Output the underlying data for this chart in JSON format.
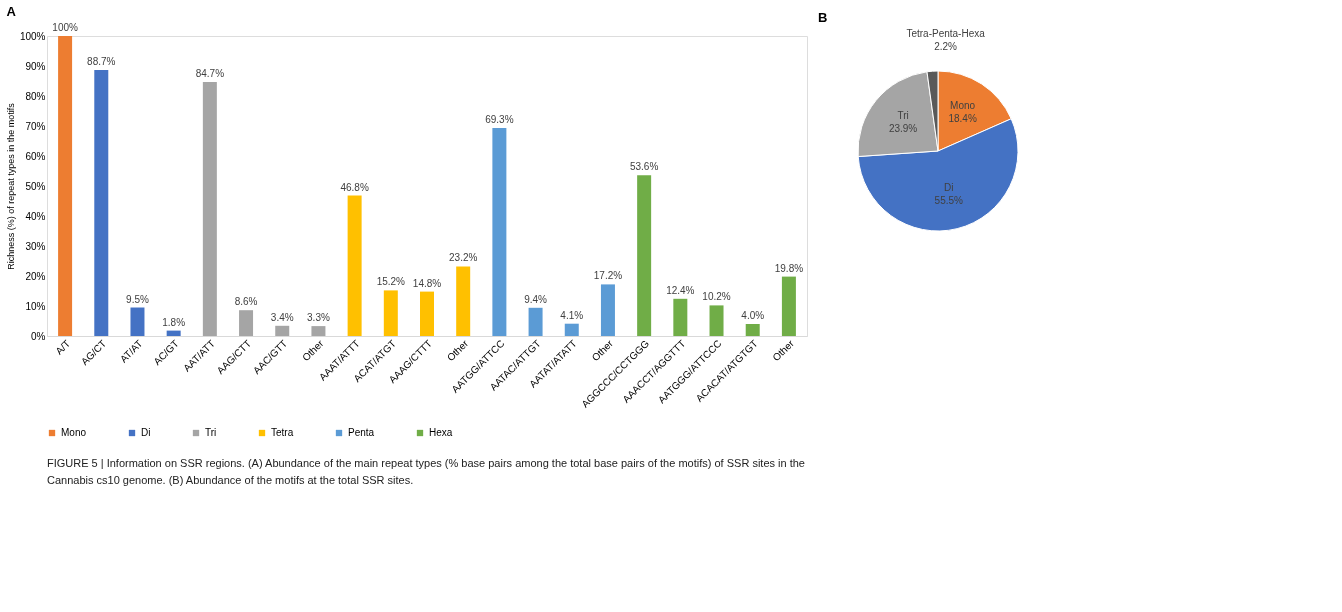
{
  "chart_data": [
    {
      "type": "bar",
      "title": "A",
      "ylabel": "Richness (%) of repeat types in the motifs",
      "categories": [
        "A/T",
        "AG/CT",
        "AT/AT",
        "AC/GT",
        "AAT/ATT",
        "AAG/CTT",
        "AAC/GTT",
        "Other",
        "AAAT/ATTT",
        "ACAT/ATGT",
        "AAAG/CTTT",
        "Other",
        "AATGG/ATTCC",
        "AATAC/ATTGT",
        "AATAT/ATATT",
        "Other",
        "AGGCCC/CCTGGG",
        "AAACCT/AGGTTT",
        "AATGGG/ATTCCC",
        "ACACAT/ATGTGT",
        "Other"
      ],
      "series": [
        {
          "name": "Mono",
          "color": "#ed7d31",
          "values": [
            100,
            null,
            null,
            null,
            null,
            null,
            null,
            null,
            null,
            null,
            null,
            null,
            null,
            null,
            null,
            null,
            null,
            null,
            null,
            null,
            null
          ],
          "value_labels": [
            "100%",
            null,
            null,
            null,
            null,
            null,
            null,
            null,
            null,
            null,
            null,
            null,
            null,
            null,
            null,
            null,
            null,
            null,
            null,
            null,
            null
          ]
        },
        {
          "name": "Di",
          "color": "#4472c4",
          "values": [
            null,
            88.7,
            9.5,
            1.8,
            null,
            null,
            null,
            null,
            null,
            null,
            null,
            null,
            null,
            null,
            null,
            null,
            null,
            null,
            null,
            null,
            null
          ],
          "value_labels": [
            null,
            "88.7%",
            "9.5%",
            "1.8%",
            null,
            null,
            null,
            null,
            null,
            null,
            null,
            null,
            null,
            null,
            null,
            null,
            null,
            null,
            null,
            null,
            null
          ]
        },
        {
          "name": "Tri",
          "color": "#a5a5a5",
          "values": [
            null,
            null,
            null,
            null,
            84.7,
            8.6,
            3.4,
            3.3,
            null,
            null,
            null,
            null,
            null,
            null,
            null,
            null,
            null,
            null,
            null,
            null,
            null
          ],
          "value_labels": [
            null,
            null,
            null,
            null,
            "84.7%",
            "8.6%",
            "3.4%",
            "3.3%",
            null,
            null,
            null,
            null,
            null,
            null,
            null,
            null,
            null,
            null,
            null,
            null,
            null
          ]
        },
        {
          "name": "Tetra",
          "color": "#ffc000",
          "values": [
            null,
            null,
            null,
            null,
            null,
            null,
            null,
            null,
            46.8,
            15.2,
            14.8,
            23.2,
            null,
            null,
            null,
            null,
            null,
            null,
            null,
            null,
            null
          ],
          "value_labels": [
            null,
            null,
            null,
            null,
            null,
            null,
            null,
            null,
            "46.8%",
            "15.2%",
            "14.8%",
            "23.2%",
            null,
            null,
            null,
            null,
            null,
            null,
            null,
            null,
            null
          ]
        },
        {
          "name": "Penta",
          "color": "#5b9bd5",
          "values": [
            null,
            null,
            null,
            null,
            null,
            null,
            null,
            null,
            null,
            null,
            null,
            null,
            69.3,
            9.4,
            4.1,
            17.2,
            null,
            null,
            null,
            null,
            null
          ],
          "value_labels": [
            null,
            null,
            null,
            null,
            null,
            null,
            null,
            null,
            null,
            null,
            null,
            null,
            "69.3%",
            "9.4%",
            "4.1%",
            "17.2%",
            null,
            null,
            null,
            null,
            null
          ]
        },
        {
          "name": "Hexa",
          "color": "#70ad47",
          "values": [
            null,
            null,
            null,
            null,
            null,
            null,
            null,
            null,
            null,
            null,
            null,
            null,
            null,
            null,
            null,
            null,
            53.6,
            12.4,
            10.2,
            4.0,
            19.8
          ],
          "value_labels": [
            null,
            null,
            null,
            null,
            null,
            null,
            null,
            null,
            null,
            null,
            null,
            null,
            null,
            null,
            null,
            null,
            "53.6%",
            "12.4%",
            "10.2%",
            "4.0%",
            "19.8%"
          ]
        }
      ],
      "ylim": [
        0,
        100
      ],
      "yticks": [
        {
          "value": 0,
          "label": "0%"
        },
        {
          "value": 10,
          "label": "10%"
        },
        {
          "value": 20,
          "label": "20%"
        },
        {
          "value": 30,
          "label": "30%"
        },
        {
          "value": 40,
          "label": "40%"
        },
        {
          "value": 50,
          "label": "50%"
        },
        {
          "value": 60,
          "label": "60%"
        },
        {
          "value": 70,
          "label": "70%"
        },
        {
          "value": 80,
          "label": "80%"
        },
        {
          "value": 90,
          "label": "90%"
        },
        {
          "value": 100,
          "label": "100%"
        }
      ],
      "grid": false,
      "legend": "bottom",
      "annotations": [
        "FIGURE 5 | Information on SSR regions. (A) Abundance of the main repeat types (% base pairs among the total base pairs of the motifs) of SSR sites in the",
        "Cannabis cs10 genome. (B) Abundance of the motifs at the total SSR sites."
      ]
    },
    {
      "type": "pie",
      "title": "B",
      "categories": [
        "Mono",
        "Di",
        "Tri",
        "Tetra-Penta-Hexa"
      ],
      "values": [
        18.4,
        55.5,
        23.9,
        2.2
      ],
      "colors": [
        "#ed7d31",
        "#4472c4",
        "#a5a5a5",
        "#595959"
      ],
      "value_labels": [
        "18.4%",
        "55.5%",
        "23.9%",
        "2.2%"
      ],
      "legend": false
    }
  ]
}
